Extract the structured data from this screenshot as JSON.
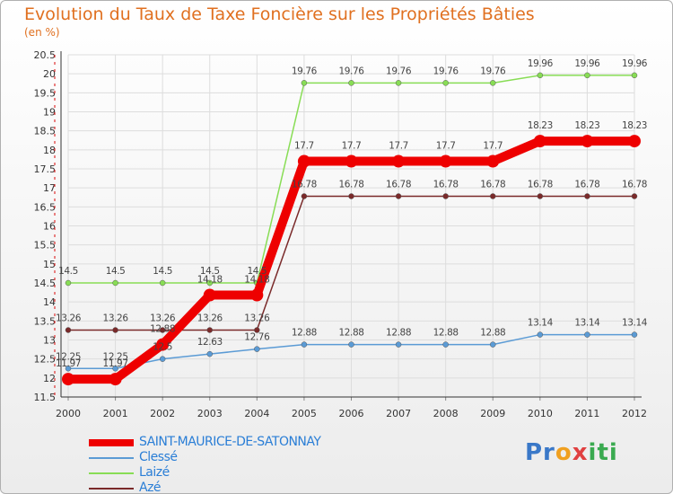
{
  "header": {
    "title": "Evolution du Taux de Taxe Foncière sur les Propriétés Bâties",
    "unit": "(en %)"
  },
  "logo": {
    "parts": [
      "Pr",
      "o",
      "x",
      "iti"
    ],
    "colors": [
      "#3a78c8",
      "#f0a020",
      "#e04040",
      "#3aaa50"
    ]
  },
  "chart_data": {
    "type": "line",
    "title": "Evolution du Taux de Taxe Foncière sur les Propriétés Bâties",
    "ylabel": "(en %)",
    "xlabel": "",
    "categories": [
      "2000",
      "2001",
      "2002",
      "2003",
      "2004",
      "2005",
      "2006",
      "2007",
      "2008",
      "2009",
      "2010",
      "2011",
      "2012"
    ],
    "ylim": [
      11.5,
      20.5
    ],
    "yticks": [
      "11.5",
      "12",
      "12.5",
      "13",
      "13.5",
      "14",
      "14.5",
      "15",
      "15.5",
      "16",
      "16.5",
      "17",
      "17.5",
      "18",
      "18.5",
      "19",
      "19.5",
      "20",
      "20.5"
    ],
    "legend_position": "bottom-left",
    "series": [
      {
        "name": "SAINT-MAURICE-DE-SATONNAY",
        "color": "#ee0000",
        "values": [
          11.97,
          11.97,
          12.88,
          14.18,
          14.18,
          17.7,
          17.7,
          17.7,
          17.7,
          17.7,
          18.23,
          18.23,
          18.23
        ],
        "labels": [
          "11.97",
          "11.97",
          "12.88",
          "14.18",
          "14.18",
          "17.7",
          "17.7",
          "17.7",
          "17.7",
          "17.7",
          "18.23",
          "18.23",
          "18.23"
        ]
      },
      {
        "name": "Clessé",
        "color": "#5b9bd5",
        "values": [
          12.25,
          12.25,
          12.5,
          12.63,
          12.76,
          12.88,
          12.88,
          12.88,
          12.88,
          12.88,
          13.14,
          13.14,
          13.14
        ],
        "labels": [
          "12.25",
          "12.25",
          "12.5",
          "12.63",
          "12.76",
          "12.88",
          "12.88",
          "12.88",
          "12.88",
          "12.88",
          "13.14",
          "13.14",
          "13.14"
        ]
      },
      {
        "name": "Laizé",
        "color": "#88dd55",
        "values": [
          14.5,
          14.5,
          14.5,
          14.5,
          14.5,
          19.76,
          19.76,
          19.76,
          19.76,
          19.76,
          19.96,
          19.96,
          19.96
        ],
        "labels": [
          "14.5",
          "14.5",
          "14.5",
          "14.5",
          "14.5",
          "19.76",
          "19.76",
          "19.76",
          "19.76",
          "19.76",
          "19.96",
          "19.96",
          "19.96"
        ]
      },
      {
        "name": "Azé",
        "color": "#7a2a2a",
        "values": [
          13.26,
          13.26,
          13.26,
          13.26,
          13.26,
          16.78,
          16.78,
          16.78,
          16.78,
          16.78,
          16.78,
          16.78,
          16.78
        ],
        "labels": [
          "13.26",
          "13.26",
          "13.26",
          "13.26",
          "13.26",
          "16.78",
          "16.78",
          "16.78",
          "16.78",
          "16.78",
          "16.78",
          "16.78",
          "16.78"
        ]
      }
    ]
  }
}
